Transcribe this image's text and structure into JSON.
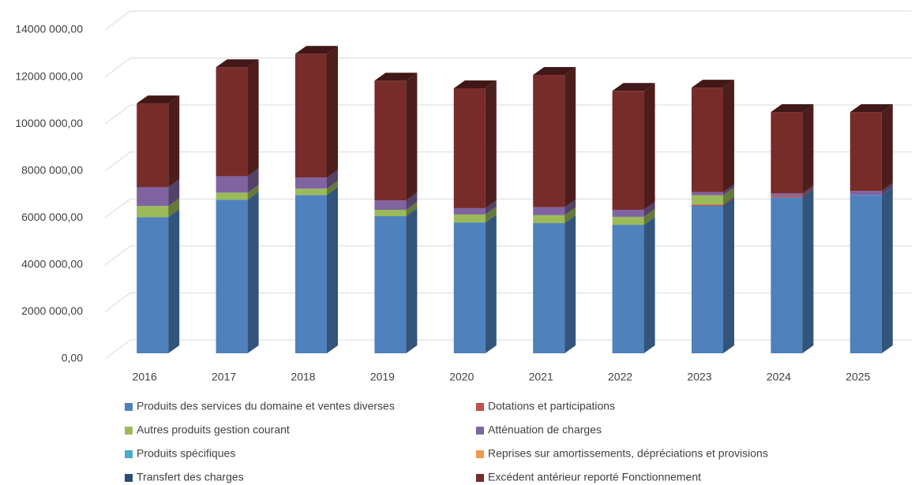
{
  "chart_data": {
    "type": "bar3d_stacked",
    "categories": [
      "2016",
      "2017",
      "2018",
      "2019",
      "2020",
      "2021",
      "2022",
      "2023",
      "2024",
      "2025"
    ],
    "series": [
      {
        "name": "Produits des services du domaine et ventes diverses",
        "color": "#4f81bd",
        "values": [
          5800000,
          6540000,
          6740000,
          5840000,
          5570000,
          5540000,
          5470000,
          6280000,
          6640000,
          6740000
        ]
      },
      {
        "name": " Dotations et participations",
        "color": "#c0504d",
        "values": [
          0,
          0,
          0,
          0,
          0,
          0,
          0,
          50000,
          70000,
          0
        ]
      },
      {
        "name": "Autres produits gestion courant",
        "color": "#9bbb59",
        "values": [
          470000,
          300000,
          270000,
          270000,
          340000,
          340000,
          340000,
          400000,
          0,
          0
        ]
      },
      {
        "name": "Atténuation de charges",
        "color": "#8064a2",
        "values": [
          800000,
          700000,
          470000,
          400000,
          270000,
          340000,
          300000,
          130000,
          100000,
          170000
        ]
      },
      {
        "name": " Produits spécifiques",
        "color": "#4bacc6",
        "values": [
          0,
          0,
          0,
          0,
          0,
          0,
          0,
          0,
          0,
          0
        ]
      },
      {
        "name": "Reprises sur amortissements, dépréciations et provisions",
        "color": "#f79646",
        "values": [
          0,
          0,
          0,
          0,
          0,
          0,
          0,
          0,
          0,
          0
        ]
      },
      {
        "name": "Transfert des charges",
        "color": "#2c4d75",
        "values": [
          0,
          0,
          0,
          0,
          0,
          0,
          0,
          0,
          0,
          0
        ]
      },
      {
        "name": "Excédent antérieur reporté Fonctionnement",
        "color": "#772c2a",
        "values": [
          3570000,
          4640000,
          5270000,
          5100000,
          5100000,
          5630000,
          5060000,
          4450000,
          3460000,
          3360000
        ]
      }
    ],
    "ylim": [
      0,
      14000000
    ],
    "yticks": [
      {
        "value": 0,
        "label": "0,00"
      },
      {
        "value": 2000000,
        "label": "2000 000,00"
      },
      {
        "value": 4000000,
        "label": "4000 000,00"
      },
      {
        "value": 6000000,
        "label": "6000 000,00"
      },
      {
        "value": 8000000,
        "label": "8000 000,00"
      },
      {
        "value": 10000000,
        "label": "10000 000,00"
      },
      {
        "value": 12000000,
        "label": "12000 000,00"
      },
      {
        "value": 14000000,
        "label": "14000 000,00"
      }
    ],
    "grid": true
  }
}
